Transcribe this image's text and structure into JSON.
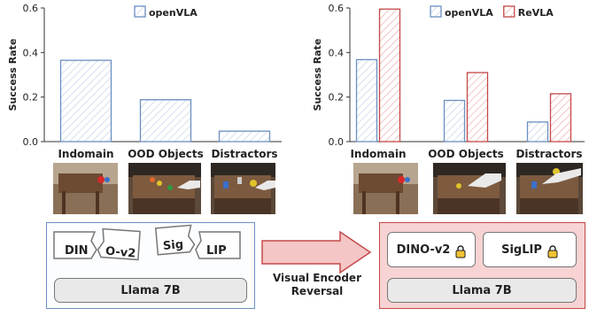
{
  "chart_data": [
    {
      "type": "bar",
      "ylabel": "Success Rate",
      "ylim": [
        0,
        0.6
      ],
      "yticks": [
        0.0,
        0.2,
        0.4,
        0.6
      ],
      "categories": [
        "Indomain",
        "OOD Objects",
        "Distractors"
      ],
      "series": [
        {
          "name": "openVLA",
          "values": [
            0.365,
            0.188,
            0.047
          ],
          "color": "#6c8fc0"
        }
      ],
      "legend": "top"
    },
    {
      "type": "bar",
      "ylabel": "Success Rate",
      "ylim": [
        0,
        0.6
      ],
      "yticks": [
        0.0,
        0.2,
        0.4,
        0.6
      ],
      "categories": [
        "Indomain",
        "OOD Objects",
        "Distractors"
      ],
      "series": [
        {
          "name": "openVLA",
          "values": [
            0.368,
            0.185,
            0.088
          ],
          "color": "#6c8fc0"
        },
        {
          "name": "ReVLA",
          "values": [
            0.595,
            0.31,
            0.215
          ],
          "color": "#c44848"
        }
      ],
      "legend": "top"
    }
  ],
  "diagram": {
    "left_encoders": {
      "din": "DIN",
      "o_v2": "O-v2",
      "sig": "Sig",
      "lip": "LIP"
    },
    "left_llm": "Llama 7B",
    "arrow_label_line1": "Visual Encoder",
    "arrow_label_line2": "Reversal",
    "right_encoders": {
      "dino": "DINO-v2",
      "siglip": "SigLIP"
    },
    "right_llm": "Llama 7B",
    "lock_icon": "lock-icon"
  },
  "colors": {
    "openvla": "#6c8fc0",
    "revla": "#c44848",
    "arrow_fill": "#f4c6c6",
    "arrow_stroke": "#c44848"
  }
}
